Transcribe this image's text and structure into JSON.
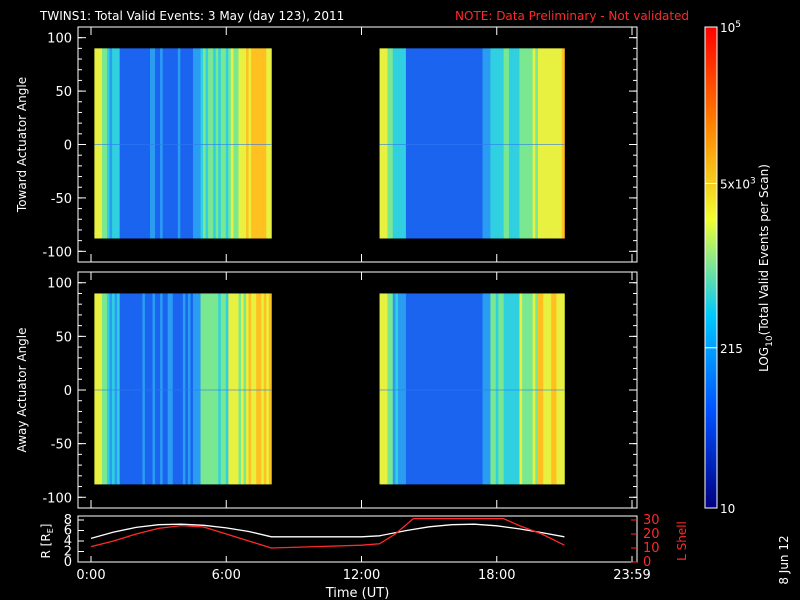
{
  "header": {
    "title": "TWINS1: Total Valid Events:  3 May (day 123), 2011",
    "note": "NOTE: Data Preliminary - Not validated"
  },
  "footer": {
    "date_stamp": "8 Jun 12"
  },
  "colorbar": {
    "label_prefix": "LOG",
    "label_sub": "10",
    "label_suffix": "(Total Valid Events per Scan)",
    "ticks": [
      {
        "base": "10",
        "exp": "",
        "value": 10
      },
      {
        "base": "215",
        "exp": "",
        "value": 215
      },
      {
        "base": "5x10",
        "exp": "3",
        "value": 5000
      },
      {
        "base": "10",
        "exp": "5",
        "value": 100000
      }
    ],
    "range": [
      10,
      100000
    ],
    "scale": "log",
    "colors": [
      "#000080",
      "#0050ff",
      "#00c8ff",
      "#f0ff30",
      "#ff8000",
      "#ff0000"
    ]
  },
  "chart_data": [
    {
      "type": "heatmap",
      "ylabel": "Toward Actuator Angle",
      "ylim": [
        -110,
        110
      ],
      "yticks": [
        "100",
        "50",
        "0",
        "-50",
        "-100"
      ],
      "angle_range": [
        -88,
        90
      ],
      "xlim": [
        0,
        24
      ],
      "xticks": [
        "0:00",
        "6:00",
        "12:00",
        "18:00",
        "23:59"
      ],
      "data_windows_hours": [
        [
          0.15,
          8.0
        ],
        [
          12.8,
          21.0
        ]
      ]
    },
    {
      "type": "heatmap",
      "ylabel": "Away Actuator Angle",
      "ylim": [
        -110,
        110
      ],
      "yticks": [
        "100",
        "50",
        "0",
        "-50",
        "-100"
      ],
      "angle_range": [
        -88,
        90
      ],
      "xlim": [
        0,
        24
      ],
      "xticks": [
        "0:00",
        "6:00",
        "12:00",
        "18:00",
        "23:59"
      ],
      "data_windows_hours": [
        [
          0.15,
          8.0
        ],
        [
          12.8,
          21.0
        ]
      ]
    },
    {
      "type": "line",
      "xlabel": "Time (UT)",
      "xlim": [
        0,
        24
      ],
      "xticks": [
        "0:00",
        "6:00",
        "12:00",
        "18:00",
        "23:59"
      ],
      "ylabel_left": "R [R",
      "ylabel_left_sub": "E",
      "ylabel_left_close": "]",
      "ylabel_right": "L Shell",
      "ylim_left": [
        0,
        8
      ],
      "yticks_left": [
        "8",
        "6",
        "4",
        "2",
        "0"
      ],
      "ylim_right": [
        0,
        30
      ],
      "yticks_right": [
        "30",
        "20",
        "10",
        "0"
      ],
      "series": [
        {
          "axis": "left",
          "color": "#ffffff",
          "x": [
            0,
            1,
            2,
            3,
            4,
            5,
            6,
            7,
            8,
            10,
            12,
            12.8,
            14,
            15,
            16,
            17,
            18,
            19,
            20,
            21
          ],
          "y": [
            4.5,
            5.7,
            6.6,
            7.1,
            7.2,
            7.0,
            6.5,
            5.8,
            4.8,
            4.8,
            4.8,
            5.0,
            6.0,
            6.7,
            7.1,
            7.2,
            6.9,
            6.3,
            5.6,
            4.8
          ]
        },
        {
          "axis": "right",
          "color": "#ff2a2a",
          "x": [
            0,
            1,
            2,
            3,
            4,
            5,
            6,
            7,
            8,
            10,
            12,
            12.8,
            13.5,
            14.3,
            18.3,
            19,
            20,
            21
          ],
          "y": [
            11,
            15,
            20,
            24,
            26,
            25,
            20,
            15,
            10,
            11,
            12,
            13,
            20,
            31,
            31,
            26,
            20,
            12
          ]
        }
      ]
    }
  ]
}
